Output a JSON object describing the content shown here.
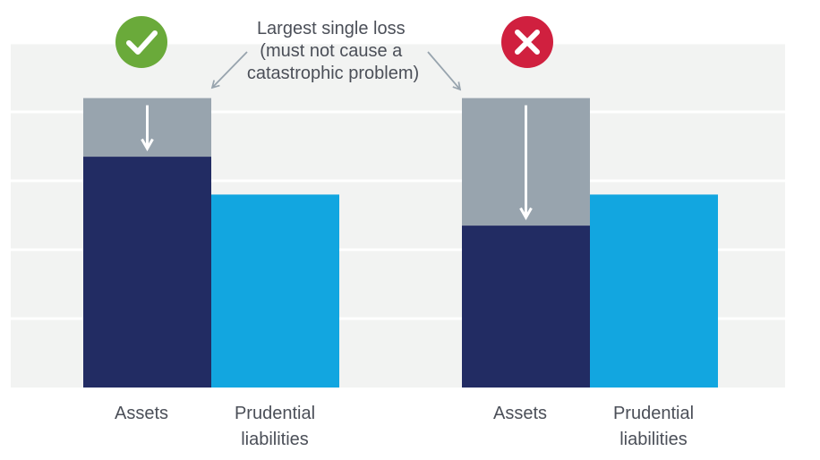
{
  "chart_data": {
    "type": "bar",
    "stacked": true,
    "ylim": [
      0,
      100
    ],
    "grid": true,
    "gridlines": [
      0,
      20,
      40,
      60,
      80,
      100
    ],
    "title": "",
    "xlabel": "",
    "ylabel": "",
    "colors": {
      "assets": "#222c63",
      "loss": "#98a4ae",
      "liabilities": "#12a6e0",
      "background": "#f2f3f2",
      "grid": "#ffffff",
      "check_badge": "#6aaa3a",
      "cross_badge": "#d0203f",
      "arrow": "#98a4ae"
    },
    "groups": [
      {
        "status_icon": "check-icon",
        "bars": [
          {
            "category": "Assets",
            "value": 67,
            "loss": 17
          },
          {
            "category": "Prudential liabilities",
            "value": 56
          }
        ]
      },
      {
        "status_icon": "cross-icon",
        "bars": [
          {
            "category": "Assets",
            "value": 47,
            "loss": 37
          },
          {
            "category": "Prudential liabilities",
            "value": 56
          }
        ]
      }
    ],
    "annotation": {
      "lines": [
        "Largest single loss",
        "(must not cause a",
        "catastrophic problem)"
      ]
    }
  },
  "labels": {
    "assets_line1": "Assets",
    "liabilities_line1": "Prudential",
    "liabilities_line2": "liabilities"
  }
}
